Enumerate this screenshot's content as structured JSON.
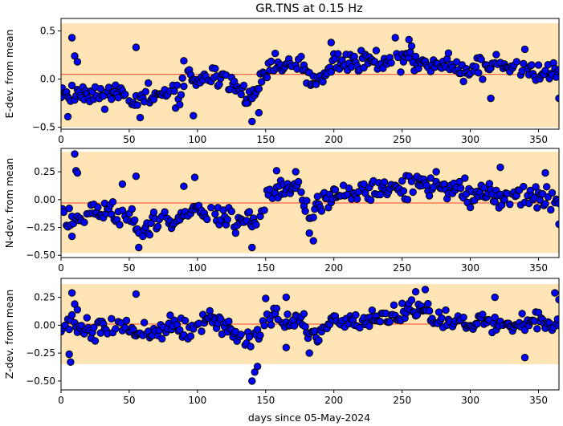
{
  "title": "GR.TNS at 0.15 Hz",
  "xlabel": "days since 05-May-2024",
  "colors": {
    "band": "#ffe4b5",
    "mean_line": "#ff6347",
    "marker_fill": "#0000ff",
    "marker_edge": "#000000"
  },
  "chart_data": [
    {
      "type": "scatter",
      "name": "E",
      "ylabel": "E-dev. from mean",
      "xlim": [
        0,
        365
      ],
      "ylim": [
        -0.52,
        0.63
      ],
      "xticks": [
        0,
        50,
        100,
        150,
        200,
        250,
        300,
        350
      ],
      "yticks": [
        -0.5,
        0.0,
        0.5
      ],
      "ytick_labels": [
        "−0.5",
        "0.0",
        "0.5"
      ],
      "band": [
        -0.5,
        0.58
      ],
      "mean_steps": [
        [
          0,
          187,
          0.05
        ],
        [
          187,
          365,
          0.05
        ]
      ],
      "anchors": [
        [
          0,
          -0.1
        ],
        [
          8,
          -0.18
        ],
        [
          15,
          -0.12
        ],
        [
          30,
          -0.16
        ],
        [
          45,
          -0.14
        ],
        [
          55,
          -0.22
        ],
        [
          75,
          -0.17
        ],
        [
          88,
          -0.16
        ],
        [
          92,
          0.08
        ],
        [
          100,
          -0.05
        ],
        [
          115,
          0.02
        ],
        [
          120,
          0.06
        ],
        [
          130,
          -0.12
        ],
        [
          140,
          -0.2
        ],
        [
          145,
          -0.08
        ],
        [
          150,
          0.05
        ],
        [
          160,
          0.14
        ],
        [
          175,
          0.12
        ],
        [
          182,
          0.03
        ],
        [
          185,
          -0.09
        ],
        [
          192,
          -0.02
        ],
        [
          200,
          0.18
        ],
        [
          230,
          0.2
        ],
        [
          260,
          0.2
        ],
        [
          290,
          0.12
        ],
        [
          320,
          0.13
        ],
        [
          350,
          0.07
        ],
        [
          365,
          0.07
        ]
      ],
      "noise": 0.12,
      "seed": 11,
      "outliers": [
        [
          8,
          0.43
        ],
        [
          10,
          0.24
        ],
        [
          12,
          0.18
        ],
        [
          55,
          0.33
        ],
        [
          90,
          0.19
        ],
        [
          140,
          -0.44
        ],
        [
          145,
          -0.35
        ],
        [
          198,
          0.38
        ],
        [
          245,
          0.43
        ],
        [
          255,
          0.41
        ],
        [
          315,
          -0.2
        ],
        [
          340,
          0.31
        ],
        [
          365,
          -0.2
        ],
        [
          5,
          -0.39
        ],
        [
          58,
          -0.4
        ],
        [
          97,
          -0.38
        ],
        [
          136,
          -0.25
        ]
      ]
    },
    {
      "type": "scatter",
      "name": "N",
      "ylabel": "N-dev. from mean",
      "xlim": [
        0,
        365
      ],
      "ylim": [
        -0.52,
        0.46
      ],
      "xticks": [
        0,
        50,
        100,
        150,
        200,
        250,
        300,
        350
      ],
      "yticks": [
        -0.5,
        -0.25,
        0.0,
        0.25
      ],
      "ytick_labels": [
        "−0.50",
        "−0.25",
        "0.00",
        "0.25"
      ],
      "band": [
        -0.48,
        0.43
      ],
      "mean_steps": [
        [
          0,
          185,
          -0.03
        ],
        [
          185,
          365,
          -0.03
        ]
      ],
      "anchors": [
        [
          0,
          -0.1
        ],
        [
          8,
          -0.2
        ],
        [
          20,
          -0.12
        ],
        [
          35,
          -0.1
        ],
        [
          50,
          -0.18
        ],
        [
          58,
          -0.25
        ],
        [
          72,
          -0.17
        ],
        [
          85,
          -0.2
        ],
        [
          95,
          -0.05
        ],
        [
          105,
          -0.15
        ],
        [
          115,
          -0.1
        ],
        [
          125,
          -0.18
        ],
        [
          135,
          -0.22
        ],
        [
          145,
          -0.18
        ],
        [
          150,
          0.02
        ],
        [
          160,
          0.08
        ],
        [
          175,
          0.1
        ],
        [
          182,
          -0.15
        ],
        [
          192,
          0.0
        ],
        [
          215,
          0.07
        ],
        [
          250,
          0.1
        ],
        [
          275,
          0.12
        ],
        [
          300,
          0.07
        ],
        [
          325,
          0.02
        ],
        [
          350,
          0.04
        ],
        [
          365,
          -0.05
        ]
      ],
      "noise": 0.11,
      "seed": 23,
      "outliers": [
        [
          10,
          0.41
        ],
        [
          11,
          0.26
        ],
        [
          12,
          0.24
        ],
        [
          8,
          -0.33
        ],
        [
          55,
          0.21
        ],
        [
          57,
          -0.43
        ],
        [
          45,
          0.14
        ],
        [
          90,
          0.12
        ],
        [
          98,
          0.2
        ],
        [
          140,
          -0.43
        ],
        [
          158,
          0.26
        ],
        [
          172,
          0.25
        ],
        [
          182,
          -0.3
        ],
        [
          185,
          -0.37
        ],
        [
          275,
          0.25
        ],
        [
          322,
          0.29
        ],
        [
          355,
          0.24
        ],
        [
          365,
          -0.22
        ],
        [
          300,
          -0.07
        ]
      ]
    },
    {
      "type": "scatter",
      "name": "Z",
      "ylabel": "Z-dev. from mean",
      "xlim": [
        0,
        365
      ],
      "ylim": [
        -0.58,
        0.42
      ],
      "xticks": [
        0,
        50,
        100,
        150,
        200,
        250,
        300,
        350
      ],
      "yticks": [
        -0.5,
        -0.25,
        0.0,
        0.25
      ],
      "ytick_labels": [
        "−0.50",
        "−0.25",
        "0.00",
        "0.25"
      ],
      "band": [
        -0.35,
        0.37
      ],
      "mean_steps": [
        [
          0,
          365,
          0.01
        ]
      ],
      "anchors": [
        [
          0,
          0.0
        ],
        [
          10,
          0.02
        ],
        [
          25,
          -0.05
        ],
        [
          45,
          -0.02
        ],
        [
          60,
          -0.1
        ],
        [
          80,
          0.0
        ],
        [
          95,
          -0.05
        ],
        [
          110,
          0.05
        ],
        [
          125,
          -0.05
        ],
        [
          140,
          -0.15
        ],
        [
          150,
          0.07
        ],
        [
          165,
          0.06
        ],
        [
          178,
          0.0
        ],
        [
          185,
          -0.15
        ],
        [
          200,
          0.05
        ],
        [
          230,
          0.04
        ],
        [
          255,
          0.14
        ],
        [
          275,
          0.07
        ],
        [
          300,
          0.03
        ],
        [
          325,
          0.0
        ],
        [
          350,
          0.05
        ],
        [
          365,
          0.0
        ]
      ],
      "noise": 0.09,
      "seed": 37,
      "outliers": [
        [
          8,
          0.29
        ],
        [
          6,
          -0.26
        ],
        [
          7,
          -0.33
        ],
        [
          10,
          0.19
        ],
        [
          12,
          0.14
        ],
        [
          55,
          0.28
        ],
        [
          140,
          -0.5
        ],
        [
          142,
          -0.42
        ],
        [
          144,
          -0.37
        ],
        [
          150,
          0.24
        ],
        [
          165,
          0.25
        ],
        [
          260,
          0.3
        ],
        [
          267,
          0.32
        ],
        [
          318,
          0.25
        ],
        [
          340,
          -0.29
        ],
        [
          362,
          0.29
        ],
        [
          365,
          0.23
        ],
        [
          182,
          -0.25
        ],
        [
          165,
          -0.2
        ]
      ]
    }
  ]
}
